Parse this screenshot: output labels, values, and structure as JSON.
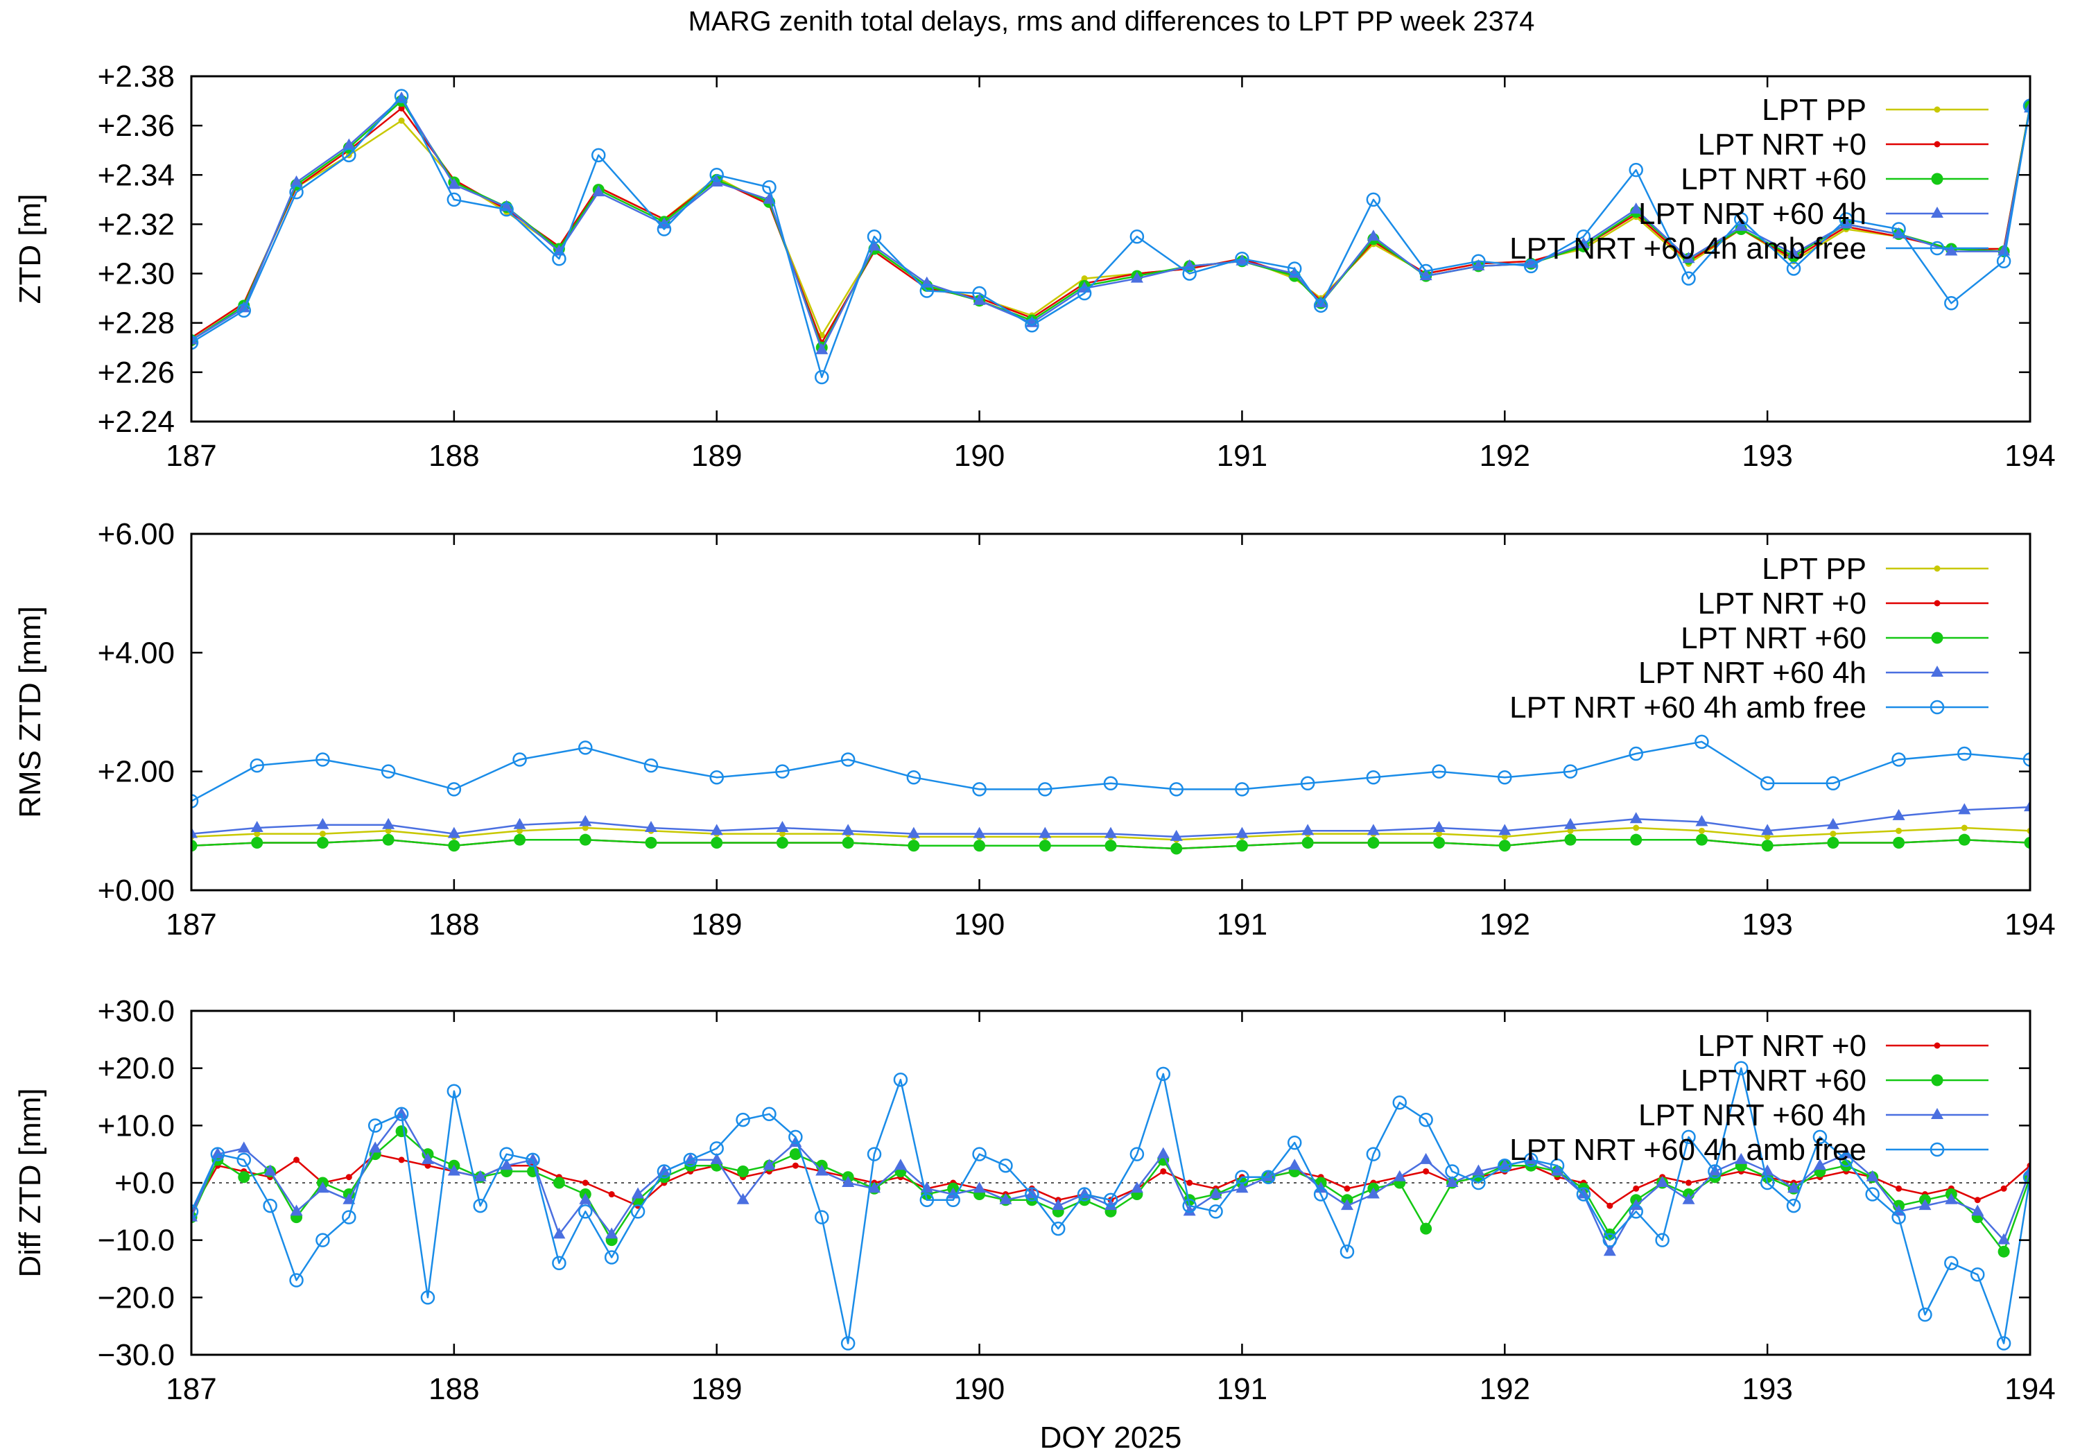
{
  "title": "MARG zenith total delays, rms and differences to LPT PP week 2374",
  "colors": {
    "LPT PP": "#c8c800",
    "LPT NRT +0": "#e00000",
    "LPT NRT +60": "#14c814",
    "LPT NRT +60 4h": "#4a6fe0",
    "LPT NRT +60 4h amb free": "#1a8ce8"
  },
  "markers": {
    "LPT PP": "dot",
    "LPT NRT +0": "dot",
    "LPT NRT +60": "circle",
    "LPT NRT +60 4h": "triangle",
    "LPT NRT +60 4h amb free": "open-circle"
  },
  "chart_data": [
    {
      "type": "line",
      "ylabel": "ZTD [m]",
      "xlim": [
        187,
        194
      ],
      "ylim": [
        2.24,
        2.38
      ],
      "xticks": [
        "187",
        "188",
        "189",
        "190",
        "191",
        "192",
        "193",
        "194"
      ],
      "yticks": [
        "+2.24",
        "+2.26",
        "+2.28",
        "+2.30",
        "+2.32",
        "+2.34",
        "+2.36",
        "+2.38"
      ],
      "legend": [
        "LPT PP",
        "LPT NRT +0",
        "LPT NRT +60",
        "LPT NRT +60 4h",
        "LPT NRT +60 4h amb free"
      ],
      "x": [
        187.0,
        187.2,
        187.4,
        187.6,
        187.8,
        188.0,
        188.2,
        188.4,
        188.55,
        188.8,
        189.0,
        189.2,
        189.4,
        189.6,
        189.8,
        190.0,
        190.2,
        190.4,
        190.6,
        190.8,
        191.0,
        191.2,
        191.3,
        191.5,
        191.7,
        191.9,
        192.1,
        192.3,
        192.5,
        192.7,
        192.9,
        193.1,
        193.3,
        193.5,
        193.7,
        193.9,
        194.0
      ],
      "series": [
        {
          "name": "LPT PP",
          "values": [
            2.274,
            2.288,
            2.335,
            2.348,
            2.362,
            2.338,
            2.325,
            2.31,
            2.335,
            2.322,
            2.339,
            2.328,
            2.275,
            2.31,
            2.295,
            2.29,
            2.283,
            2.298,
            2.3,
            2.302,
            2.306,
            2.298,
            2.29,
            2.312,
            2.3,
            2.304,
            2.305,
            2.31,
            2.323,
            2.304,
            2.318,
            2.305,
            2.318,
            2.315,
            2.31,
            2.31,
            2.368
          ]
        },
        {
          "name": "LPT NRT +0",
          "values": [
            2.274,
            2.288,
            2.335,
            2.35,
            2.367,
            2.338,
            2.326,
            2.311,
            2.335,
            2.322,
            2.338,
            2.328,
            2.272,
            2.309,
            2.294,
            2.29,
            2.282,
            2.296,
            2.3,
            2.302,
            2.306,
            2.299,
            2.289,
            2.313,
            2.3,
            2.304,
            2.305,
            2.311,
            2.324,
            2.305,
            2.318,
            2.306,
            2.319,
            2.315,
            2.31,
            2.31,
            2.368
          ]
        },
        {
          "name": "LPT NRT +60",
          "values": [
            2.273,
            2.287,
            2.336,
            2.351,
            2.37,
            2.337,
            2.327,
            2.31,
            2.334,
            2.321,
            2.338,
            2.329,
            2.27,
            2.31,
            2.295,
            2.289,
            2.281,
            2.295,
            2.299,
            2.303,
            2.305,
            2.299,
            2.288,
            2.314,
            2.299,
            2.303,
            2.304,
            2.311,
            2.325,
            2.306,
            2.318,
            2.307,
            2.32,
            2.316,
            2.31,
            2.309,
            2.368
          ]
        },
        {
          "name": "LPT NRT +60 4h",
          "values": [
            2.273,
            2.286,
            2.337,
            2.352,
            2.371,
            2.336,
            2.327,
            2.309,
            2.333,
            2.32,
            2.337,
            2.33,
            2.269,
            2.311,
            2.296,
            2.289,
            2.28,
            2.294,
            2.298,
            2.303,
            2.305,
            2.3,
            2.288,
            2.315,
            2.299,
            2.303,
            2.304,
            2.312,
            2.326,
            2.306,
            2.319,
            2.308,
            2.32,
            2.316,
            2.309,
            2.309,
            2.367
          ]
        },
        {
          "name": "LPT NRT +60 4h amb free",
          "values": [
            2.272,
            2.285,
            2.333,
            2.348,
            2.372,
            2.33,
            2.326,
            2.306,
            2.348,
            2.318,
            2.34,
            2.335,
            2.258,
            2.315,
            2.293,
            2.292,
            2.279,
            2.292,
            2.315,
            2.3,
            2.306,
            2.302,
            2.287,
            2.33,
            2.301,
            2.305,
            2.303,
            2.315,
            2.342,
            2.298,
            2.322,
            2.302,
            2.322,
            2.318,
            2.288,
            2.305,
            2.368
          ]
        }
      ]
    },
    {
      "type": "line",
      "ylabel": "RMS ZTD [mm]",
      "xlim": [
        187,
        194
      ],
      "ylim": [
        0,
        6
      ],
      "xticks": [
        "187",
        "188",
        "189",
        "190",
        "191",
        "192",
        "193",
        "194"
      ],
      "yticks": [
        "+0.00",
        "+2.00",
        "+4.00",
        "+6.00"
      ],
      "legend": [
        "LPT PP",
        "LPT NRT +0",
        "LPT NRT +60",
        "LPT NRT +60 4h",
        "LPT NRT +60 4h amb free"
      ],
      "x": [
        187.0,
        187.25,
        187.5,
        187.75,
        188.0,
        188.25,
        188.5,
        188.75,
        189.0,
        189.25,
        189.5,
        189.75,
        190.0,
        190.25,
        190.5,
        190.75,
        191.0,
        191.25,
        191.5,
        191.75,
        192.0,
        192.25,
        192.5,
        192.75,
        193.0,
        193.25,
        193.5,
        193.75,
        194.0
      ],
      "series": [
        {
          "name": "LPT PP",
          "values": [
            0.9,
            0.95,
            0.95,
            1.0,
            0.9,
            1.0,
            1.05,
            1.0,
            0.95,
            0.95,
            0.95,
            0.9,
            0.9,
            0.9,
            0.9,
            0.85,
            0.9,
            0.95,
            0.95,
            0.95,
            0.9,
            1.0,
            1.05,
            1.0,
            0.9,
            0.95,
            1.0,
            1.05,
            1.0
          ]
        },
        {
          "name": "LPT NRT +0",
          "values": [
            0.75,
            0.8,
            0.8,
            0.85,
            0.75,
            0.85,
            0.85,
            0.8,
            0.8,
            0.8,
            0.8,
            0.75,
            0.75,
            0.75,
            0.75,
            0.7,
            0.75,
            0.8,
            0.8,
            0.8,
            0.75,
            0.85,
            0.85,
            0.85,
            0.75,
            0.8,
            0.8,
            0.85,
            0.8
          ]
        },
        {
          "name": "LPT NRT +60",
          "values": [
            0.75,
            0.8,
            0.8,
            0.85,
            0.75,
            0.85,
            0.85,
            0.8,
            0.8,
            0.8,
            0.8,
            0.75,
            0.75,
            0.75,
            0.75,
            0.7,
            0.75,
            0.8,
            0.8,
            0.8,
            0.75,
            0.85,
            0.85,
            0.85,
            0.75,
            0.8,
            0.8,
            0.85,
            0.8
          ]
        },
        {
          "name": "LPT NRT +60 4h",
          "values": [
            0.95,
            1.05,
            1.1,
            1.1,
            0.95,
            1.1,
            1.15,
            1.05,
            1.0,
            1.05,
            1.0,
            0.95,
            0.95,
            0.95,
            0.95,
            0.9,
            0.95,
            1.0,
            1.0,
            1.05,
            1.0,
            1.1,
            1.2,
            1.15,
            1.0,
            1.1,
            1.25,
            1.35,
            1.4
          ]
        },
        {
          "name": "LPT NRT +60 4h amb free",
          "values": [
            1.5,
            2.1,
            2.2,
            2.0,
            1.7,
            2.2,
            2.4,
            2.1,
            1.9,
            2.0,
            2.2,
            1.9,
            1.7,
            1.7,
            1.8,
            1.7,
            1.7,
            1.8,
            1.9,
            2.0,
            1.9,
            2.0,
            2.3,
            2.5,
            1.8,
            1.8,
            2.2,
            2.3,
            2.2
          ]
        }
      ]
    },
    {
      "type": "line",
      "ylabel": "Diff ZTD [mm]",
      "xlabel": "DOY 2025",
      "xlim": [
        187,
        194
      ],
      "ylim": [
        -30,
        30
      ],
      "xticks": [
        "187",
        "188",
        "189",
        "190",
        "191",
        "192",
        "193",
        "194"
      ],
      "yticks": [
        "−30.0",
        "−20.0",
        "−10.0",
        "+0.0",
        "+10.0",
        "+20.0",
        "+30.0"
      ],
      "legend": [
        "LPT NRT +0",
        "LPT NRT +60",
        "LPT NRT +60 4h",
        "LPT NRT +60 4h amb free"
      ],
      "x": [
        187.0,
        187.1,
        187.2,
        187.3,
        187.4,
        187.5,
        187.6,
        187.7,
        187.8,
        187.9,
        188.0,
        188.1,
        188.2,
        188.3,
        188.4,
        188.5,
        188.6,
        188.7,
        188.8,
        188.9,
        189.0,
        189.1,
        189.2,
        189.3,
        189.4,
        189.5,
        189.6,
        189.7,
        189.8,
        189.9,
        190.0,
        190.1,
        190.2,
        190.3,
        190.4,
        190.5,
        190.6,
        190.7,
        190.8,
        190.9,
        191.0,
        191.1,
        191.2,
        191.3,
        191.4,
        191.5,
        191.6,
        191.7,
        191.8,
        191.9,
        192.0,
        192.1,
        192.2,
        192.3,
        192.4,
        192.5,
        192.6,
        192.7,
        192.8,
        192.9,
        193.0,
        193.1,
        193.2,
        193.3,
        193.4,
        193.5,
        193.6,
        193.7,
        193.8,
        193.9,
        194.0
      ],
      "series": [
        {
          "name": "LPT NRT +0",
          "values": [
            -5,
            3,
            2,
            1,
            4,
            0,
            1,
            5,
            4,
            3,
            2,
            1,
            3,
            3,
            1,
            0,
            -2,
            -4,
            0,
            2,
            3,
            1,
            2,
            3,
            2,
            1,
            0,
            1,
            -1,
            0,
            -1,
            -2,
            -1,
            -3,
            -2,
            -3,
            -1,
            2,
            0,
            -1,
            1,
            1,
            2,
            1,
            -1,
            0,
            1,
            2,
            0,
            1,
            2,
            3,
            1,
            0,
            -4,
            -1,
            1,
            0,
            1,
            2,
            1,
            0,
            1,
            2,
            1,
            -1,
            -2,
            -1,
            -3,
            -1,
            3
          ]
        },
        {
          "name": "LPT NRT +60",
          "values": [
            -6,
            4,
            1,
            2,
            -6,
            0,
            -2,
            5,
            9,
            5,
            3,
            1,
            2,
            2,
            0,
            -2,
            -10,
            -3,
            1,
            3,
            3,
            2,
            3,
            5,
            3,
            1,
            -1,
            2,
            -2,
            -1,
            -2,
            -3,
            -3,
            -5,
            -3,
            -5,
            -2,
            4,
            -3,
            -2,
            0,
            1,
            2,
            0,
            -3,
            -1,
            0,
            -8,
            0,
            1,
            3,
            3,
            2,
            -1,
            -9,
            -3,
            0,
            -2,
            1,
            3,
            1,
            -1,
            2,
            3,
            1,
            -4,
            -3,
            -2,
            -6,
            -12,
            1
          ]
        },
        {
          "name": "LPT NRT +60 4h",
          "values": [
            -6,
            5,
            6,
            2,
            -5,
            -1,
            -3,
            6,
            12,
            4,
            2,
            1,
            3,
            4,
            -9,
            -3,
            -9,
            -2,
            2,
            4,
            4,
            -3,
            3,
            7,
            2,
            0,
            -1,
            3,
            -1,
            -2,
            -1,
            -3,
            -2,
            -4,
            -2,
            -4,
            -1,
            5,
            -5,
            -2,
            -1,
            1,
            3,
            -1,
            -4,
            -2,
            1,
            4,
            0,
            2,
            3,
            4,
            2,
            -2,
            -12,
            -4,
            0,
            -3,
            2,
            4,
            2,
            -1,
            3,
            5,
            1,
            -5,
            -4,
            -3,
            -5,
            -10,
            2
          ]
        },
        {
          "name": "LPT NRT +60 4h amb free",
          "values": [
            -5,
            5,
            4,
            -4,
            -17,
            -10,
            -6,
            10,
            12,
            -20,
            16,
            -4,
            5,
            4,
            -14,
            -5,
            -13,
            -5,
            2,
            4,
            6,
            11,
            12,
            8,
            -6,
            -28,
            5,
            18,
            -3,
            -3,
            5,
            3,
            -2,
            -8,
            -2,
            -3,
            5,
            19,
            -4,
            -5,
            1,
            1,
            7,
            -2,
            -12,
            5,
            14,
            11,
            2,
            0,
            3,
            4,
            3,
            -2,
            -10,
            -5,
            -10,
            8,
            2,
            20,
            0,
            -4,
            8,
            4,
            -2,
            -6,
            -23,
            -14,
            -16,
            -28,
            1
          ]
        }
      ]
    }
  ]
}
